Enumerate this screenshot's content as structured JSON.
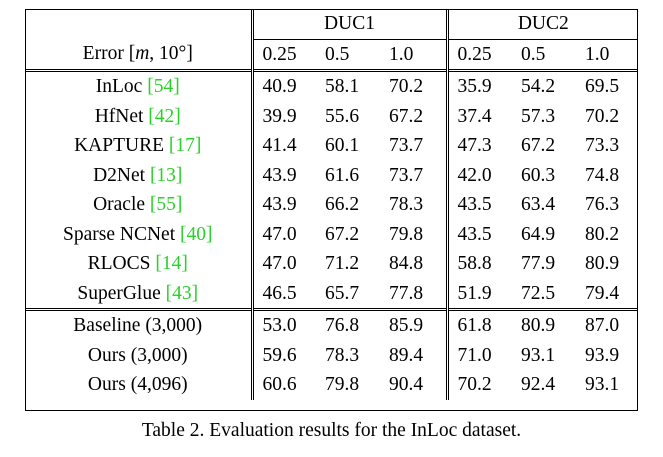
{
  "table": {
    "group_headers": [
      "DUC1",
      "DUC2"
    ],
    "row_header_label": "Error [",
    "row_header_m": "m",
    "row_header_rest": ", 10°]",
    "thresholds": [
      "0.25",
      "0.5",
      "1.0",
      "0.25",
      "0.5",
      "1.0"
    ],
    "section1": [
      {
        "method": "InLoc",
        "ref": "[54]",
        "values": [
          "40.9",
          "58.1",
          "70.2",
          "35.9",
          "54.2",
          "69.5"
        ],
        "bold": [
          false,
          false,
          false,
          false,
          false,
          false
        ]
      },
      {
        "method": "HfNet",
        "ref": "[42]",
        "values": [
          "39.9",
          "55.6",
          "67.2",
          "37.4",
          "57.3",
          "70.2"
        ],
        "bold": [
          false,
          false,
          false,
          false,
          false,
          false
        ]
      },
      {
        "method": "KAPTURE",
        "ref": "[17]",
        "values": [
          "41.4",
          "60.1",
          "73.7",
          "47.3",
          "67.2",
          "73.3"
        ],
        "bold": [
          false,
          false,
          false,
          false,
          false,
          false
        ]
      },
      {
        "method": "D2Net",
        "ref": "[13]",
        "values": [
          "43.9",
          "61.6",
          "73.7",
          "42.0",
          "60.3",
          "74.8"
        ],
        "bold": [
          false,
          false,
          false,
          false,
          false,
          false
        ]
      },
      {
        "method": "Oracle",
        "ref": "[55]",
        "values": [
          "43.9",
          "66.2",
          "78.3",
          "43.5",
          "63.4",
          "76.3"
        ],
        "bold": [
          false,
          false,
          false,
          false,
          false,
          false
        ]
      },
      {
        "method": "Sparse NCNet",
        "ref": "[40]",
        "values": [
          "47.0",
          "67.2",
          "79.8",
          "43.5",
          "64.9",
          "80.2"
        ],
        "bold": [
          false,
          false,
          false,
          false,
          false,
          false
        ]
      },
      {
        "method": "RLOCS",
        "ref": "[14]",
        "values": [
          "47.0",
          "71.2",
          "84.8",
          "58.8",
          "77.9",
          "80.9"
        ],
        "bold": [
          false,
          false,
          false,
          false,
          false,
          false
        ]
      },
      {
        "method": "SuperGlue",
        "ref": "[43]",
        "values": [
          "46.5",
          "65.7",
          "77.8",
          "51.9",
          "72.5",
          "79.4"
        ],
        "bold": [
          false,
          false,
          false,
          false,
          false,
          false
        ]
      }
    ],
    "section2": [
      {
        "method": "Baseline (3,000)",
        "ref": "",
        "values": [
          "53.0",
          "76.8",
          "85.9",
          "61.8",
          "80.9",
          "87.0"
        ],
        "bold": [
          false,
          false,
          false,
          false,
          false,
          false
        ]
      },
      {
        "method": "Ours (3,000)",
        "ref": "",
        "values": [
          "59.6",
          "78.3",
          "89.4",
          "71.0",
          "93.1",
          "93.9"
        ],
        "bold": [
          false,
          false,
          false,
          true,
          true,
          true
        ]
      },
      {
        "method": "Ours (4,096)",
        "ref": "",
        "values": [
          "60.6",
          "79.8",
          "90.4",
          "70.2",
          "92.4",
          "93.1"
        ],
        "bold": [
          true,
          true,
          true,
          false,
          false,
          false
        ]
      }
    ]
  },
  "caption": "Table 2. Evaluation results for the InLoc dataset.",
  "colors": {
    "reference": "#2bd12b",
    "text": "#000000"
  }
}
